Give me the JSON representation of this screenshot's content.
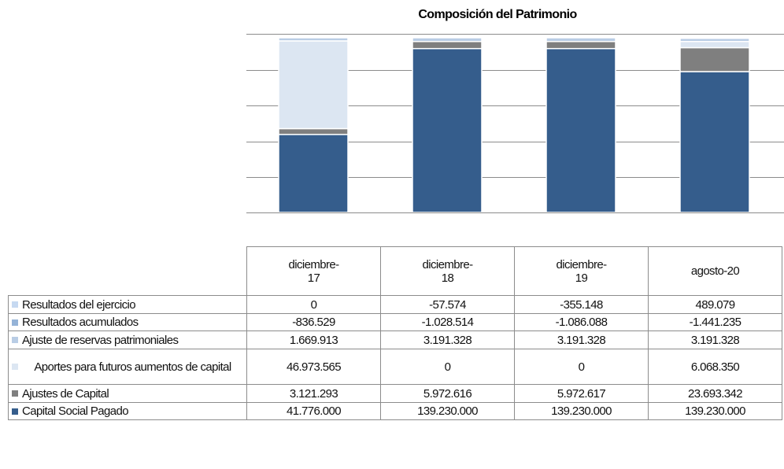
{
  "chart_data": {
    "type": "bar",
    "stacking": "percent",
    "title": "Composición del Patrimonio",
    "categories": [
      "diciembre-17",
      "diciembre-18",
      "diciembre-19",
      "agosto-20"
    ],
    "series": [
      {
        "name": "Resultados del ejercicio",
        "color": "#c6d9f1",
        "values": [
          0,
          -57574,
          -355148,
          489079
        ],
        "value_labels": [
          "0",
          "-57.574",
          "-355.148",
          "489.079"
        ]
      },
      {
        "name": "Resultados acumulados",
        "color": "#95b3d7",
        "values": [
          -836529,
          -1028514,
          -1086088,
          -1441235
        ],
        "value_labels": [
          "-836.529",
          "-1.028.514",
          "-1.086.088",
          "-1.441.235"
        ]
      },
      {
        "name": "Ajuste de reservas patrimoniales",
        "color": "#b9cde5",
        "values": [
          1669913,
          3191328,
          3191328,
          3191328
        ],
        "value_labels": [
          "1.669.913",
          "3.191.328",
          "3.191.328",
          "3.191.328"
        ]
      },
      {
        "name": "Aportes para futuros aumentos de capital",
        "color": "#dce6f2",
        "values": [
          46973565,
          0,
          0,
          6068350
        ],
        "value_labels": [
          "46.973.565",
          "0",
          "0",
          "6.068.350"
        ]
      },
      {
        "name": "Ajustes de Capital",
        "color": "#7f7f7f",
        "values": [
          3121293,
          5972616,
          5972617,
          23693342
        ],
        "value_labels": [
          "3.121.293",
          "5.972.616",
          "5.972.617",
          "23.693.342"
        ]
      },
      {
        "name": "Capital Social Pagado",
        "color": "#355d8c",
        "values": [
          41776000,
          139230000,
          139230000,
          139230000
        ],
        "value_labels": [
          "41.776.000",
          "139.230.000",
          "139.230.000",
          "139.230.000"
        ]
      }
    ],
    "grid": true
  }
}
